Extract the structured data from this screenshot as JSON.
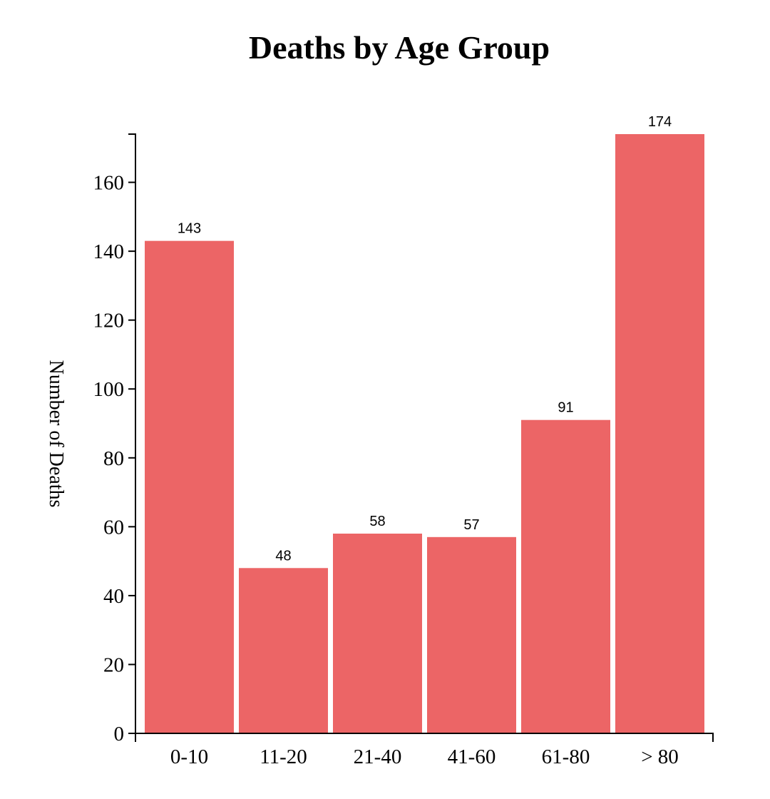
{
  "chart_data": {
    "type": "bar",
    "title": "Deaths by Age Group",
    "xlabel": "",
    "ylabel": "Number of Deaths",
    "categories": [
      "0-10",
      "11-20",
      "21-40",
      "41-60",
      "61-80",
      "> 80"
    ],
    "values": [
      143,
      48,
      58,
      57,
      91,
      174
    ],
    "ylim": [
      0,
      174
    ],
    "yticks": [
      0,
      20,
      40,
      60,
      80,
      100,
      120,
      140,
      160
    ],
    "bar_color": "#ec6566",
    "grid": false,
    "legend": "none"
  }
}
